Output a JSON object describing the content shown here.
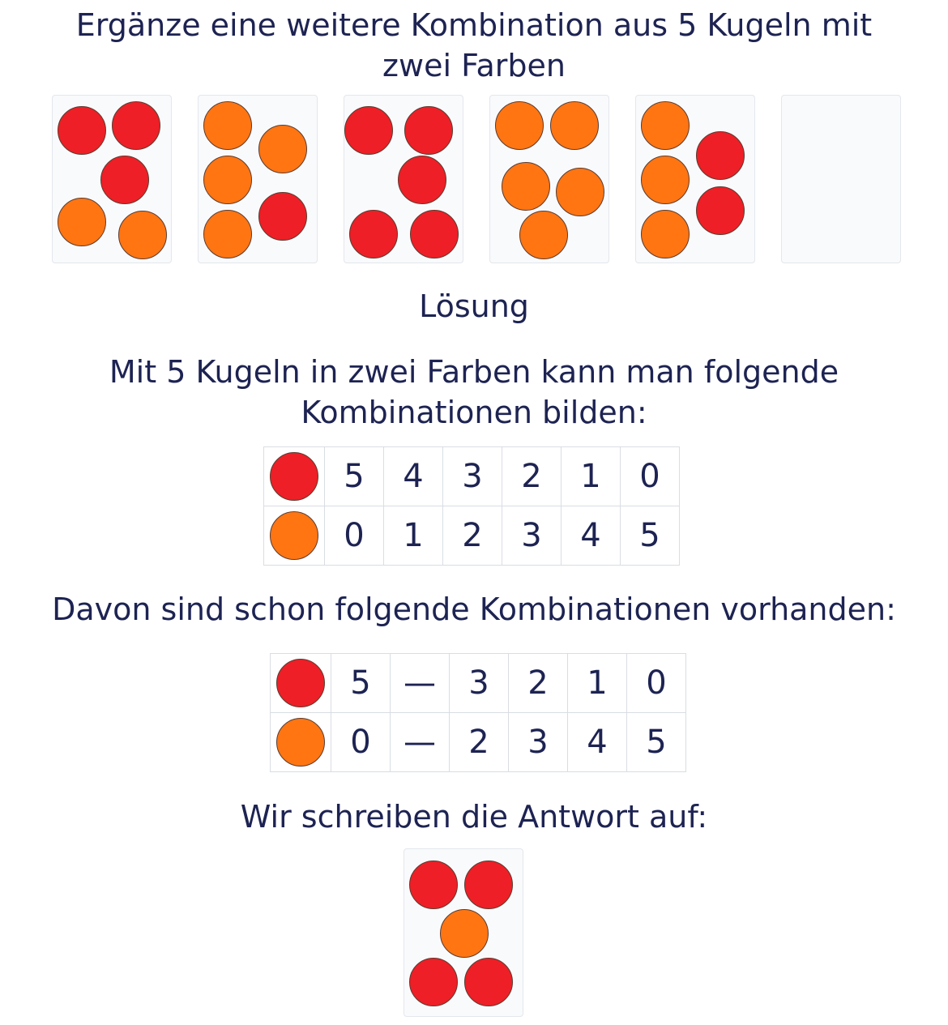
{
  "task": {
    "title_line1": "Ergänze eine weitere Kombination aus 5 Kugeln mit",
    "title_line2": "zwei Farben"
  },
  "colors": {
    "red": "#ee1f26",
    "orange": "#ff7512",
    "text": "#1d2352"
  },
  "cards": [
    {
      "balls": [
        "red",
        "red",
        "red",
        "orange",
        "orange"
      ]
    },
    {
      "balls": [
        "orange",
        "orange",
        "orange",
        "orange",
        "red"
      ]
    },
    {
      "balls": [
        "red",
        "red",
        "red",
        "red",
        "red"
      ]
    },
    {
      "balls": [
        "orange",
        "orange",
        "orange",
        "orange",
        "orange"
      ]
    },
    {
      "balls": [
        "orange",
        "orange",
        "orange",
        "red",
        "red"
      ]
    },
    {
      "balls": []
    }
  ],
  "solution": {
    "heading": "Lösung",
    "intro_line1": "Mit 5 Kugeln in zwei Farben kann man folgende",
    "intro_line2": "Kombinationen bilden:",
    "all_combinations": {
      "red_row": [
        "5",
        "4",
        "3",
        "2",
        "1",
        "0"
      ],
      "orange_row": [
        "0",
        "1",
        "2",
        "3",
        "4",
        "5"
      ]
    },
    "existing_text": "Davon sind schon folgende Kombinationen vorhanden:",
    "existing_combinations": {
      "red_row": [
        "5",
        "—",
        "3",
        "2",
        "1",
        "0"
      ],
      "orange_row": [
        "0",
        "—",
        "2",
        "3",
        "4",
        "5"
      ]
    },
    "answer_text": "Wir schreiben die Antwort auf:",
    "answer_card": {
      "balls": [
        "red",
        "red",
        "orange",
        "red",
        "red"
      ]
    }
  }
}
